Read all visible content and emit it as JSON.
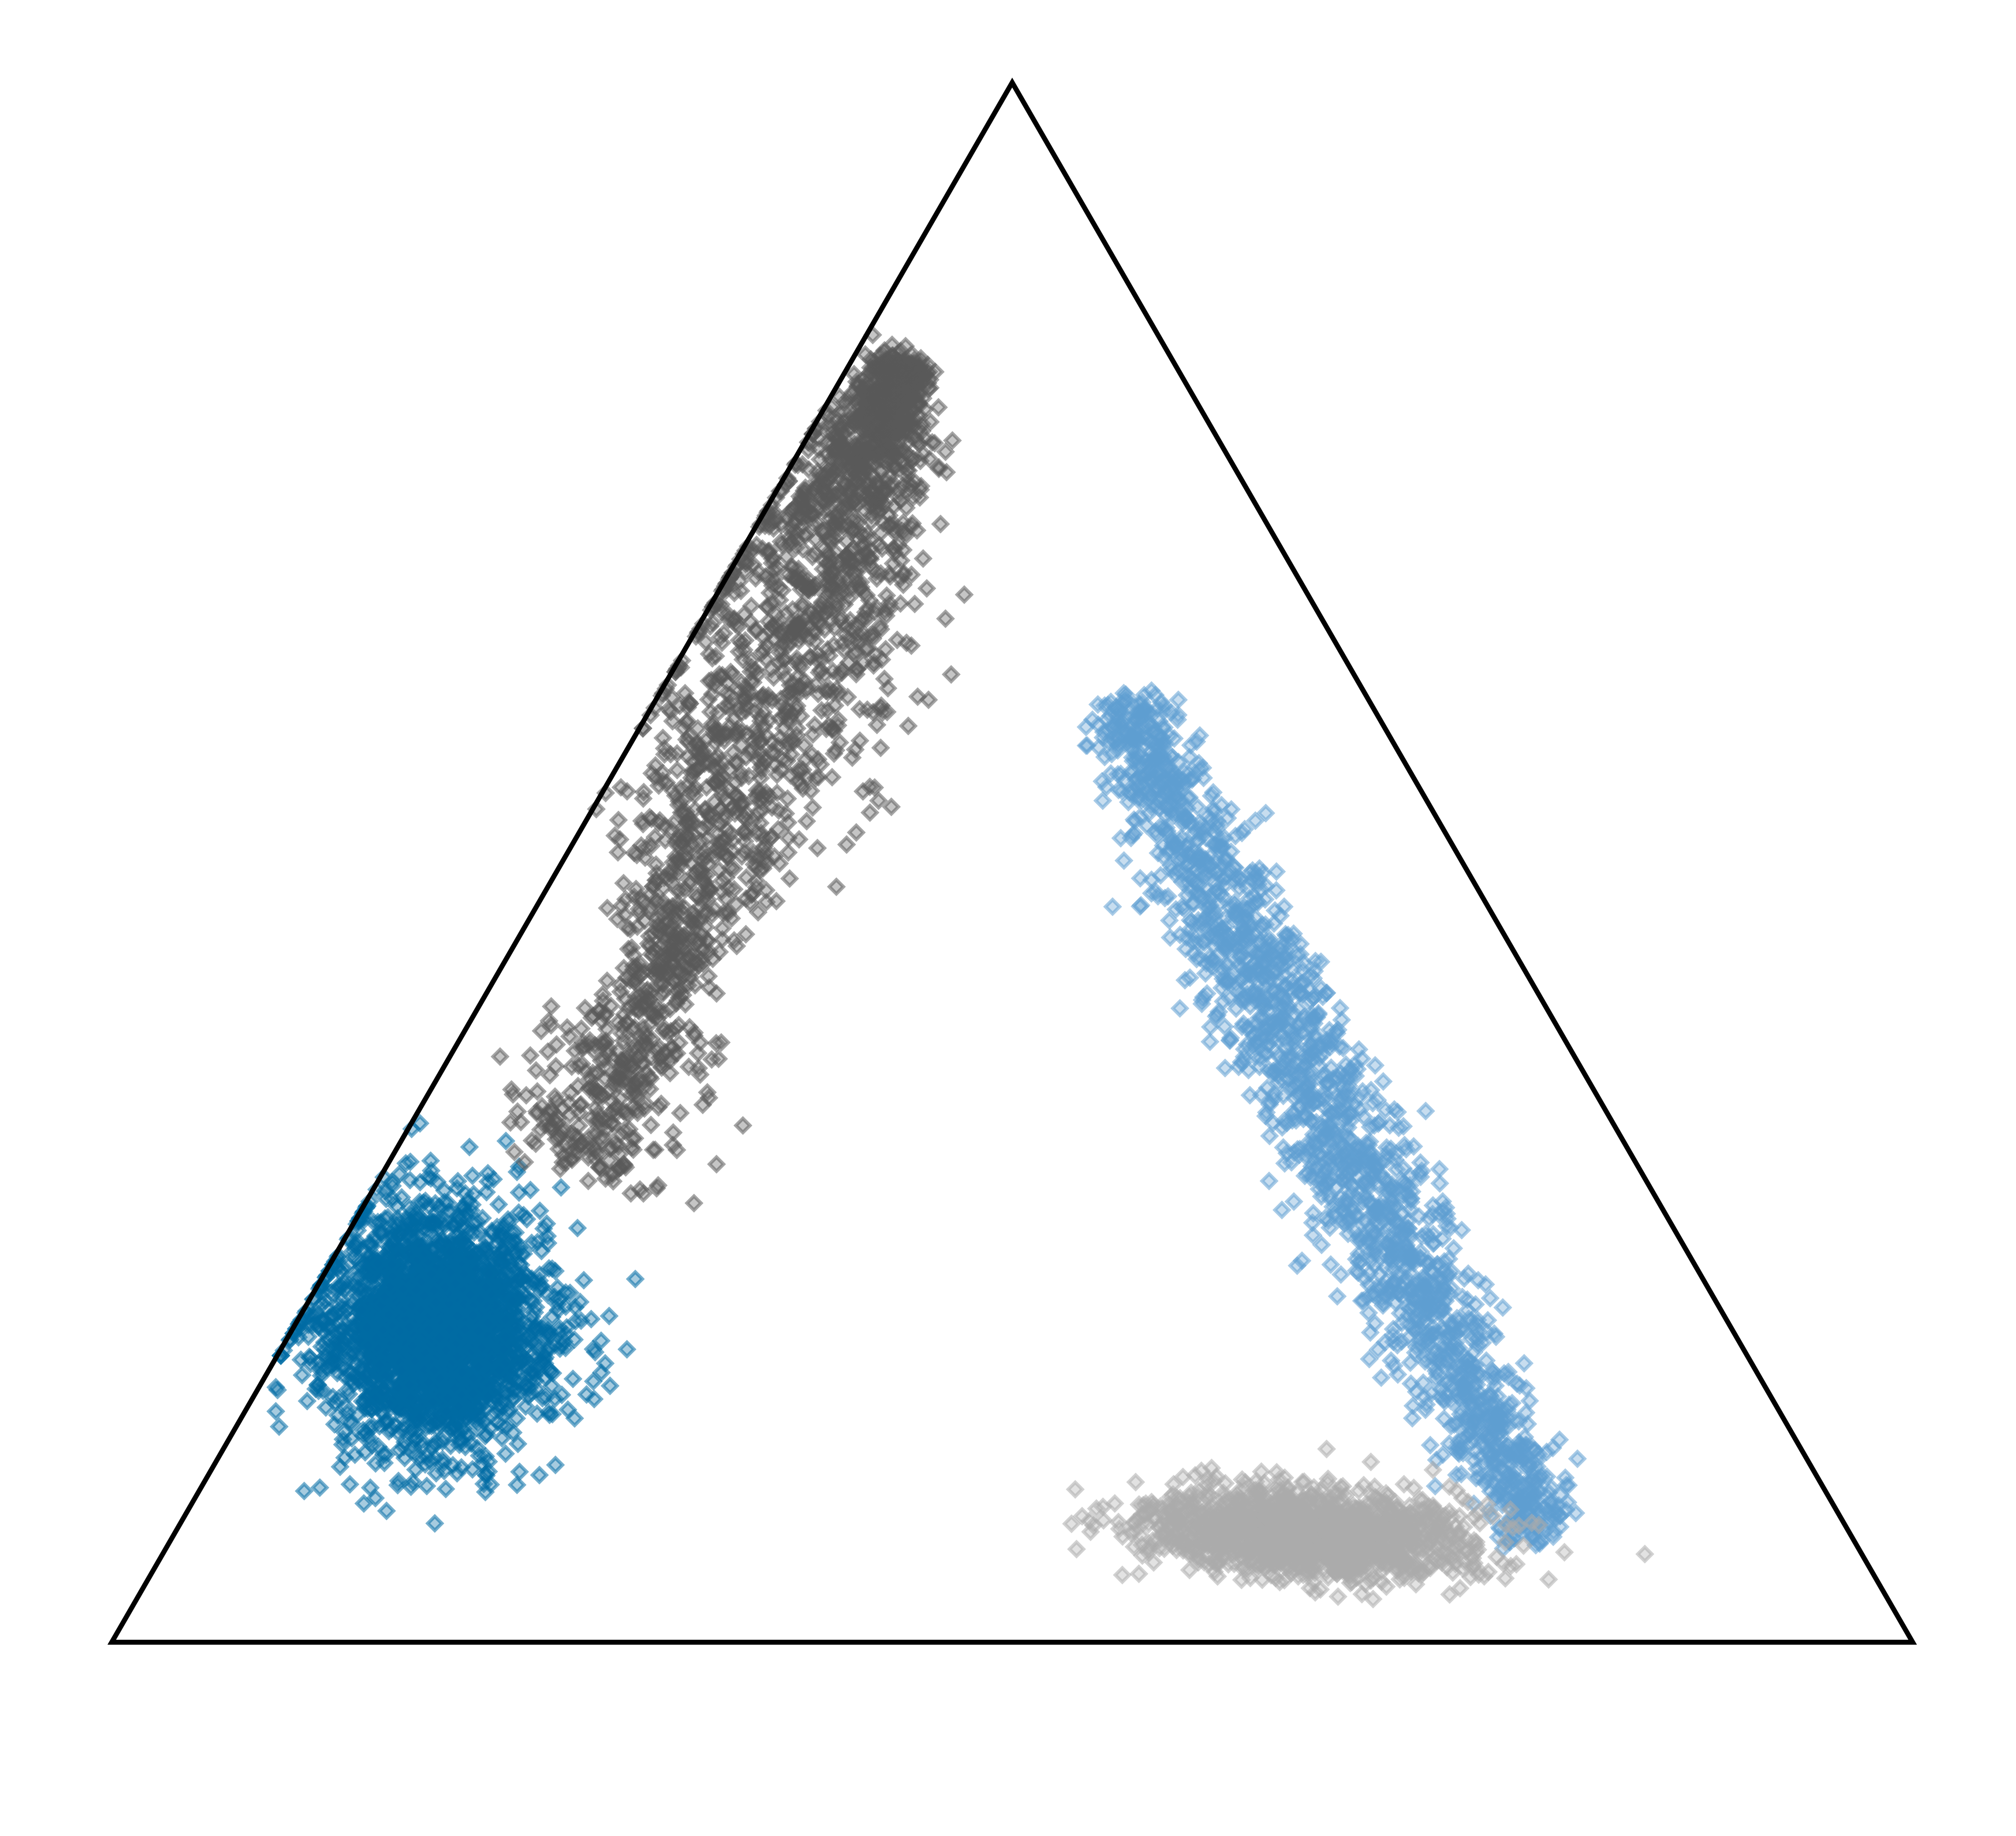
{
  "chart_data": {
    "type": "scatter",
    "subtype": "ternary",
    "marker": "diamond",
    "title": "",
    "axes": {
      "a_label": "",
      "b_label": "",
      "c_label": "",
      "range": [
        0,
        1
      ],
      "grid": false,
      "ticks": false
    },
    "legend": "none",
    "series": [
      {
        "color": "#006ba4",
        "shape": "round",
        "center": [
          0.2,
          0.72,
          0.08
        ],
        "spread": [
          0.045,
          0.045
        ],
        "tilt": 0,
        "count": 2600
      },
      {
        "color": "#5f9ed1",
        "shape": "ridge",
        "start": [
          0.6,
          0.14,
          0.26
        ],
        "end": [
          0.07,
          0.17,
          0.76
        ],
        "width": 0.02,
        "count": 1900
      },
      {
        "color": "#595959",
        "shape": "plume",
        "start": [
          0.82,
          0.15,
          0.03
        ],
        "end": [
          0.3,
          0.59,
          0.11
        ],
        "width": 0.028,
        "count": 2300
      },
      {
        "color": "#ababab",
        "shape": "lens",
        "center": [
          0.07,
          0.3,
          0.63
        ],
        "spread": [
          0.065,
          0.017
        ],
        "tilt": -0.06,
        "count": 1500
      }
    ]
  }
}
